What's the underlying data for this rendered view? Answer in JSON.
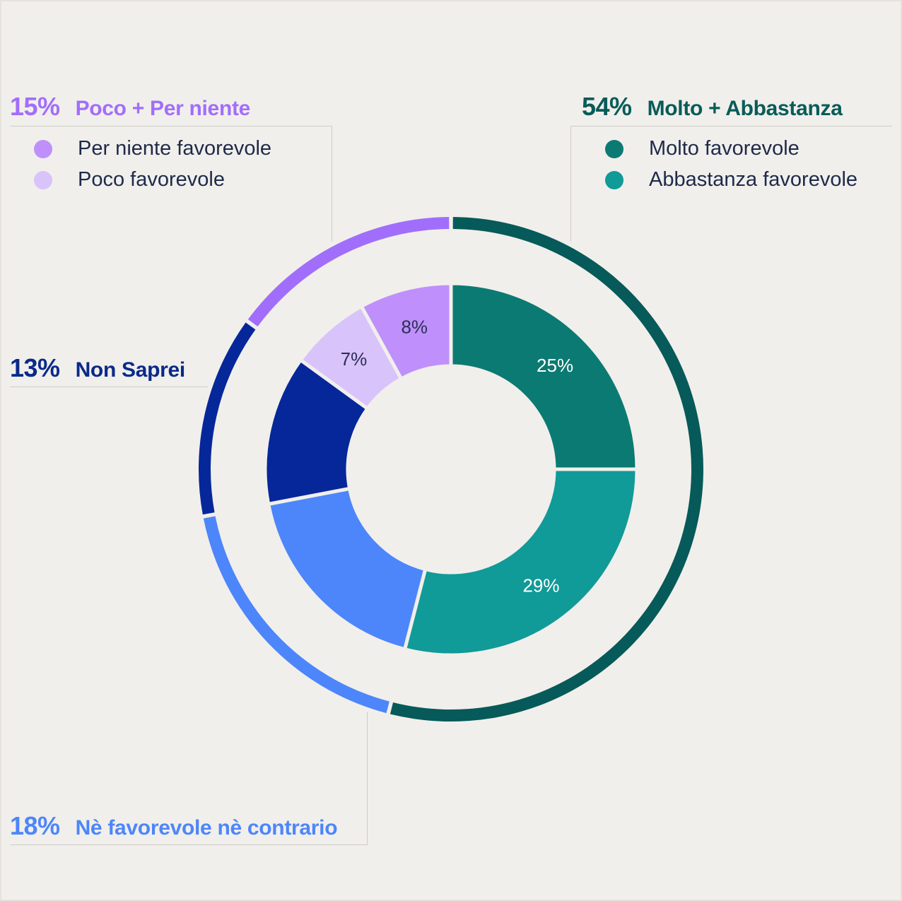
{
  "colors": {
    "molto": "#0b7a72",
    "abbastanza": "#109a98",
    "ne_ne": "#4d86fa",
    "non_saprei": "#06279a",
    "per_niente": "#bf90fb",
    "poco": "#d9c3fb",
    "outer_favorevole": "#065a59",
    "outer_ne_ne": "#4d86fa",
    "outer_non_saprei": "#06279a",
    "outer_sfavorevole": "#a16efc"
  },
  "groups": {
    "sfavorevole": {
      "pct": "15%",
      "label": "Poco + Per niente",
      "color": "#a16efc"
    },
    "favorevole": {
      "pct": "54%",
      "label": "Molto + Abbastanza",
      "color": "#075c58"
    },
    "non_saprei": {
      "pct": "13%",
      "label": "Non Saprei",
      "color": "#0a2a8a"
    },
    "ne_ne": {
      "pct": "18%",
      "label": "Nè favorevole nè contrario",
      "color": "#4d86fa"
    }
  },
  "legend": {
    "left": [
      {
        "label": "Per niente favorevole",
        "color": "#bf90fb"
      },
      {
        "label": "Poco favorevole",
        "color": "#d9c3fb"
      }
    ],
    "right": [
      {
        "label": "Molto favorevole",
        "color": "#0b7a72"
      },
      {
        "label": "Abbastanza favorevole",
        "color": "#109a98"
      }
    ]
  },
  "chart_data": {
    "type": "pie",
    "inner": [
      {
        "name": "Molto favorevole",
        "value": 25,
        "label": "25%",
        "color": "#0b7a72",
        "label_color": "#ffffff"
      },
      {
        "name": "Abbastanza favorevole",
        "value": 29,
        "label": "29%",
        "color": "#109a98",
        "label_color": "#ffffff"
      },
      {
        "name": "Nè favorevole nè contrario",
        "value": 18,
        "label": "",
        "color": "#4d86fa",
        "label_color": "#ffffff"
      },
      {
        "name": "Non Saprei",
        "value": 13,
        "label": "",
        "color": "#06279a",
        "label_color": "#ffffff"
      },
      {
        "name": "Poco favorevole",
        "value": 7,
        "label": "7%",
        "color": "#d9c3fb",
        "label_color": "#2a2f55"
      },
      {
        "name": "Per niente favorevole",
        "value": 8,
        "label": "8%",
        "color": "#bf90fb",
        "label_color": "#2a2f55"
      }
    ],
    "outer": [
      {
        "name": "Molto + Abbastanza",
        "value": 54,
        "color": "#065a59"
      },
      {
        "name": "Nè favorevole nè contrario",
        "value": 18,
        "color": "#4d86fa"
      },
      {
        "name": "Non Saprei",
        "value": 13,
        "color": "#06279a"
      },
      {
        "name": "Poco + Per niente",
        "value": 15,
        "color": "#a16efc"
      }
    ]
  }
}
